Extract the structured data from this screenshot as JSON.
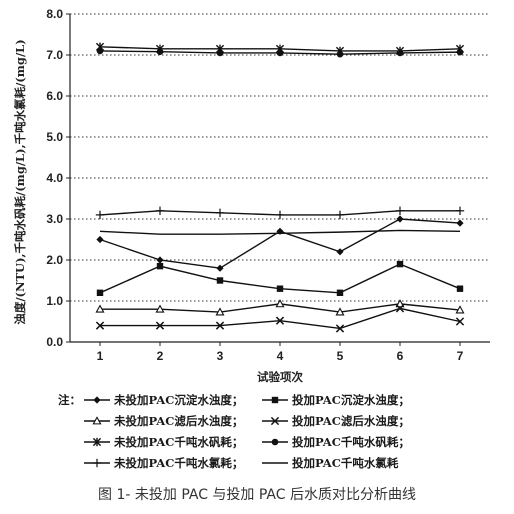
{
  "chart_data": {
    "type": "line",
    "title": "",
    "xlabel": "试验项次",
    "ylabel": "浊度/(NTU),千吨水矾耗/(mg/L),千吨水氯耗/(mg/L)",
    "ylim": [
      0,
      8
    ],
    "yticks": [
      "0.0",
      "1.0",
      "2.0",
      "3.0",
      "4.0",
      "5.0",
      "6.0",
      "7.0",
      "8.0"
    ],
    "categories": [
      "1",
      "2",
      "3",
      "4",
      "5",
      "6",
      "7"
    ],
    "grid": "horizontal dotted",
    "legend_placement": "bottom",
    "legend_prefix": "注：",
    "series": [
      {
        "name": "未投加PAC沉淀水浊度；",
        "marker": "diamond",
        "values": [
          2.5,
          2.0,
          1.8,
          2.7,
          2.2,
          3.0,
          2.9
        ]
      },
      {
        "name": "投加PAC沉淀水浊度；",
        "marker": "square",
        "values": [
          1.2,
          1.85,
          1.5,
          1.3,
          1.2,
          1.9,
          1.3
        ]
      },
      {
        "name": "未投加PAC滤后水浊度；",
        "marker": "triangle",
        "values": [
          0.8,
          0.8,
          0.73,
          0.93,
          0.73,
          0.93,
          0.78
        ]
      },
      {
        "name": "投加PAC滤后水浊度；",
        "marker": "x",
        "values": [
          0.4,
          0.4,
          0.4,
          0.52,
          0.33,
          0.82,
          0.5
        ]
      },
      {
        "name": "未投加PAC千吨水矾耗；",
        "marker": "star",
        "values": [
          7.2,
          7.15,
          7.15,
          7.15,
          7.1,
          7.1,
          7.15
        ]
      },
      {
        "name": "投加PAC千吨水矾耗；",
        "marker": "circle",
        "values": [
          7.1,
          7.08,
          7.05,
          7.05,
          7.02,
          7.05,
          7.07
        ]
      },
      {
        "name": "未投加PAC千吨水氯耗；",
        "marker": "plus",
        "values": [
          3.1,
          3.2,
          3.15,
          3.1,
          3.1,
          3.2,
          3.2
        ]
      },
      {
        "name": "投加PAC千吨水氯耗",
        "marker": "none",
        "values": [
          2.7,
          2.63,
          2.63,
          2.65,
          2.68,
          2.72,
          2.7
        ]
      }
    ]
  },
  "caption": "图 1- 未投加 PAC 与投加 PAC 后水质对比分析曲线"
}
